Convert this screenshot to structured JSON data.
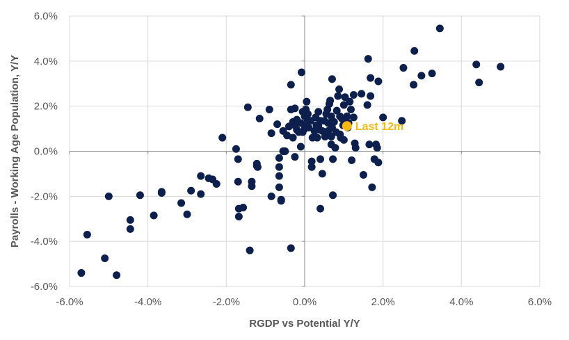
{
  "colors": {
    "points": "#0c1f4d",
    "highlight": "#f5b90f",
    "grid": "#d9d9d9",
    "axis": "#8c8c8c",
    "text": "#595959"
  },
  "chart_data": {
    "type": "scatter",
    "title": "",
    "xlabel": "RGDP vs Potential Y/Y",
    "ylabel": "Payrolls - Working Age Population, Y/Y",
    "xlim": [
      -0.06,
      0.06
    ],
    "ylim": [
      -0.06,
      0.06
    ],
    "x_ticks": [
      -0.06,
      -0.04,
      -0.02,
      0.0,
      0.02,
      0.04,
      0.06
    ],
    "y_ticks": [
      -0.06,
      -0.04,
      -0.02,
      0.0,
      0.02,
      0.04,
      0.06
    ],
    "x_tick_labels": [
      "-6.0%",
      "-4.0%",
      "-2.0%",
      "0.0%",
      "2.0%",
      "4.0%",
      "6.0%"
    ],
    "y_tick_labels": [
      "-6.0%",
      "-4.0%",
      "-2.0%",
      "0.0%",
      "2.0%",
      "4.0%",
      "6.0%"
    ],
    "grid": true,
    "legend": "none",
    "series": [
      {
        "points": [
          [
            -0.057,
            -0.054
          ],
          [
            -0.0555,
            -0.037
          ],
          [
            -0.051,
            -0.0475
          ],
          [
            -0.05,
            -0.02
          ],
          [
            -0.048,
            -0.055
          ],
          [
            -0.0445,
            -0.0305
          ],
          [
            -0.0445,
            -0.0345
          ],
          [
            -0.042,
            -0.0195
          ],
          [
            -0.0385,
            -0.0285
          ],
          [
            -0.0365,
            -0.018
          ],
          [
            -0.0365,
            -0.0185
          ],
          [
            -0.0315,
            -0.023
          ],
          [
            -0.03,
            -0.028
          ],
          [
            -0.029,
            -0.0175
          ],
          [
            -0.0265,
            -0.011
          ],
          [
            -0.0265,
            -0.019
          ],
          [
            -0.0245,
            -0.012
          ],
          [
            -0.0235,
            -0.0125
          ],
          [
            -0.0225,
            -0.0145
          ],
          [
            -0.021,
            0.006
          ],
          [
            -0.0175,
            0.001
          ],
          [
            -0.017,
            -0.0035
          ],
          [
            -0.017,
            -0.0135
          ],
          [
            -0.0168,
            -0.0255
          ],
          [
            -0.0168,
            -0.029
          ],
          [
            -0.0157,
            -0.025
          ],
          [
            -0.0145,
            0.0195
          ],
          [
            -0.014,
            -0.044
          ],
          [
            -0.0135,
            -0.0135
          ],
          [
            -0.0135,
            -0.0155
          ],
          [
            -0.0122,
            -0.0055
          ],
          [
            -0.0122,
            -0.0065
          ],
          [
            -0.012,
            -0.007
          ],
          [
            -0.0115,
            0.0145
          ],
          [
            -0.009,
            0.0185
          ],
          [
            -0.0085,
            0.008
          ],
          [
            -0.0085,
            -0.02
          ],
          [
            -0.007,
            0.012
          ],
          [
            -0.0065,
            -0.003
          ],
          [
            -0.0065,
            -0.007
          ],
          [
            -0.0065,
            -0.011
          ],
          [
            -0.0065,
            -0.016
          ],
          [
            -0.006,
            -0.0215
          ],
          [
            -0.006,
            -0.022
          ],
          [
            -0.0055,
            0.009
          ],
          [
            -0.0055,
            0.0
          ],
          [
            -0.005,
            0.0
          ],
          [
            -0.0045,
            0.007
          ],
          [
            -0.004,
            0.011
          ],
          [
            -0.0035,
            0.0295
          ],
          [
            -0.0035,
            0.0185
          ],
          [
            -0.0035,
            -0.043
          ],
          [
            -0.003,
            0.013
          ],
          [
            -0.003,
            0.006
          ],
          [
            -0.0025,
            0.019
          ],
          [
            -0.0025,
            0.0115
          ],
          [
            -0.0025,
            -0.0025
          ],
          [
            -0.002,
            0.0095
          ],
          [
            -0.002,
            0.014
          ],
          [
            -0.0015,
            0.0085
          ],
          [
            -0.001,
            0.0125
          ],
          [
            -0.001,
            0.002
          ],
          [
            -0.0008,
            0.035
          ],
          [
            -0.0005,
            0.0085
          ],
          [
            -0.0005,
            0.0175
          ],
          [
            0.0,
            0.0155
          ],
          [
            0.0,
            0.01
          ],
          [
            0.0003,
            0.0185
          ],
          [
            0.0005,
            0.022
          ],
          [
            0.0005,
            0.0125
          ],
          [
            0.0008,
            0.0165
          ],
          [
            0.001,
            0.0105
          ],
          [
            0.0015,
            0.0135
          ],
          [
            0.0018,
            -0.0045
          ],
          [
            0.0018,
            -0.007
          ],
          [
            0.002,
            0.006
          ],
          [
            0.0025,
            0.009
          ],
          [
            0.0028,
            0.015
          ],
          [
            0.003,
            0.0115
          ],
          [
            0.0032,
            0.006
          ],
          [
            0.0035,
            0.0175
          ],
          [
            0.0035,
            0.0115
          ],
          [
            0.0038,
            0.0095
          ],
          [
            0.004,
            0.0135
          ],
          [
            0.004,
            -0.0035
          ],
          [
            0.004,
            -0.0255
          ],
          [
            0.0045,
            0.009
          ],
          [
            0.0045,
            -0.01
          ],
          [
            0.005,
            0.0135
          ],
          [
            0.0052,
            0.0065
          ],
          [
            0.0055,
            0.0165
          ],
          [
            0.0055,
            0.007
          ],
          [
            0.0058,
            0.0185
          ],
          [
            0.006,
            0.009
          ],
          [
            0.006,
            0.0125
          ],
          [
            0.0063,
            0.021
          ],
          [
            0.0065,
            0.0225
          ],
          [
            0.0068,
            0.0155
          ],
          [
            0.0068,
            0.0065
          ],
          [
            0.0068,
            0.003
          ],
          [
            0.007,
            0.032
          ],
          [
            0.007,
            0.0105
          ],
          [
            0.0072,
            -0.0035
          ],
          [
            0.0072,
            -0.0195
          ],
          [
            0.0075,
            0.013
          ],
          [
            0.0078,
            0.0015
          ],
          [
            0.008,
            0.0085
          ],
          [
            0.0082,
            0.018
          ],
          [
            0.0085,
            0.0245
          ],
          [
            0.0088,
            0.0275
          ],
          [
            0.009,
            0.0155
          ],
          [
            0.009,
            0.0075
          ],
          [
            0.0092,
            0.006
          ],
          [
            0.0095,
            0.0145
          ],
          [
            0.0098,
            0.0115
          ],
          [
            0.01,
            0.0205
          ],
          [
            0.01,
            0.005
          ],
          [
            0.0103,
            0.024
          ],
          [
            0.0105,
            0.0125
          ],
          [
            0.0108,
            0.0155
          ],
          [
            0.011,
            0.0105
          ],
          [
            0.0112,
            0.0125
          ],
          [
            0.0115,
            0.022
          ],
          [
            0.0118,
            0.0185
          ],
          [
            0.012,
            -0.004
          ],
          [
            0.0125,
            0.025
          ],
          [
            0.0125,
            0.015
          ],
          [
            0.0128,
            0.0035
          ],
          [
            0.013,
            0.0015
          ],
          [
            0.0145,
            0.0255
          ],
          [
            0.015,
            -0.0105
          ],
          [
            0.016,
            0.0205
          ],
          [
            0.0162,
            0.041
          ],
          [
            0.0165,
            0.003
          ],
          [
            0.0168,
            0.0245
          ],
          [
            0.0168,
            0.0325
          ],
          [
            0.0172,
            -0.016
          ],
          [
            0.0178,
            -0.0035
          ],
          [
            0.0182,
            0.003
          ],
          [
            0.0185,
            0.0015
          ],
          [
            0.0188,
            0.031
          ],
          [
            0.0188,
            -0.005
          ],
          [
            0.02,
            0.015
          ],
          [
            0.0248,
            0.0135
          ],
          [
            0.0252,
            0.037
          ],
          [
            0.0278,
            0.0295
          ],
          [
            0.028,
            0.0445
          ],
          [
            0.0298,
            0.0335
          ],
          [
            0.0325,
            0.0345
          ],
          [
            0.0345,
            0.0545
          ],
          [
            0.0438,
            0.0385
          ],
          [
            0.0445,
            0.0305
          ],
          [
            0.05,
            0.0375
          ]
        ]
      }
    ],
    "annotation": {
      "label": "Last 12m",
      "x": 0.0108,
      "y": 0.0112
    }
  }
}
